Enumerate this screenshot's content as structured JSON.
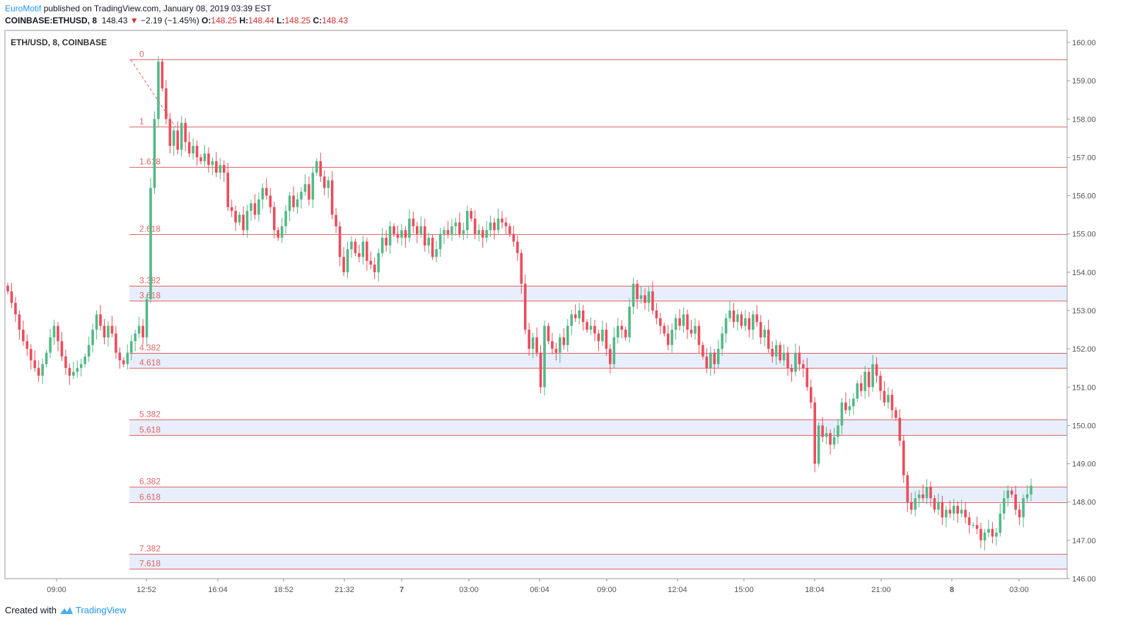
{
  "header": {
    "author": "EuroMotif",
    "published_text": " published on TradingView.com, January 08, 2019 03:39 EST",
    "symbol": "COINBASE:ETHUSD, 8",
    "last": "148.43",
    "change": "−2.19 (−1.45%)",
    "open_label": "O:",
    "open": "148.25",
    "high_label": "H:",
    "high": "148.44",
    "low_label": "L:",
    "low": "148.25",
    "close_label": "C:",
    "close": "148.43"
  },
  "footer": {
    "created_with": "Created with",
    "brand": "TradingView",
    "logo_icon": "tradingview-logo-icon"
  },
  "colors": {
    "up": "#53b987",
    "down": "#eb4d5c",
    "fib_line": "#e06666",
    "fib_band": "#e8eefb",
    "axis_text": "#555555"
  },
  "chart_data": {
    "type": "candlestick",
    "title": "ETH/USD, 8, COINBASE",
    "ylim": [
      146.0,
      160.3
    ],
    "y_ticks": [
      "160.00",
      "159.00",
      "158.00",
      "157.00",
      "156.00",
      "155.00",
      "154.00",
      "153.00",
      "152.00",
      "151.00",
      "150.00",
      "149.00",
      "148.00",
      "147.00",
      "146.00"
    ],
    "x_ticks": [
      "09:00",
      "12:52",
      "16:04",
      "18:52",
      "21:32",
      "7",
      "03:00",
      "06:04",
      "09:00",
      "12:04",
      "15:00",
      "18:04",
      "21:00",
      "8",
      "03:00"
    ],
    "fib_levels": [
      {
        "label": "0",
        "price": 159.55
      },
      {
        "label": "1",
        "price": 157.8
      },
      {
        "label": "1.618",
        "price": 156.75
      },
      {
        "label": "2.618",
        "price": 155.0
      },
      {
        "label": "3.382",
        "price": 153.65
      },
      {
        "label": "3.618",
        "price": 153.25
      },
      {
        "label": "4.382",
        "price": 151.9
      },
      {
        "label": "4.618",
        "price": 151.5
      },
      {
        "label": "5.382",
        "price": 150.15
      },
      {
        "label": "5.618",
        "price": 149.75
      },
      {
        "label": "6.382",
        "price": 148.4
      },
      {
        "label": "6.618",
        "price": 148.0
      },
      {
        "label": "7.382",
        "price": 146.65
      },
      {
        "label": "7.618",
        "price": 146.25
      }
    ],
    "bands": [
      [
        3.382,
        3.618
      ],
      [
        4.382,
        4.618
      ],
      [
        5.382,
        5.618
      ],
      [
        6.382,
        6.618
      ],
      [
        7.382,
        7.618
      ]
    ],
    "trend_line": {
      "from": [
        159.55,
        "12:52"
      ],
      "to": [
        157.8,
        "after 12:52"
      ]
    },
    "closes": [
      153.5,
      153.2,
      152.9,
      152.5,
      152.2,
      152.0,
      151.7,
      151.5,
      151.3,
      151.6,
      151.9,
      152.3,
      152.6,
      152.2,
      151.8,
      151.5,
      151.3,
      151.4,
      151.5,
      151.6,
      151.8,
      152.1,
      152.5,
      152.9,
      152.6,
      152.3,
      152.6,
      152.4,
      151.9,
      151.7,
      151.6,
      151.9,
      152.2,
      152.4,
      152.6,
      152.3,
      153.3,
      156.2,
      158.0,
      159.5,
      158.8,
      158.0,
      157.3,
      157.7,
      157.2,
      157.9,
      157.4,
      157.1,
      157.3,
      157.0,
      156.9,
      157.1,
      156.8,
      156.9,
      156.6,
      156.8,
      156.6,
      155.7,
      155.6,
      155.3,
      155.5,
      155.1,
      155.6,
      155.8,
      155.5,
      155.9,
      156.2,
      156.0,
      155.7,
      155.1,
      154.9,
      155.2,
      155.6,
      156.0,
      155.7,
      155.9,
      156.1,
      156.3,
      155.9,
      156.6,
      156.9,
      156.5,
      156.2,
      156.4,
      155.5,
      155.2,
      154.4,
      154.0,
      154.6,
      154.8,
      154.5,
      154.4,
      154.8,
      154.3,
      154.2,
      154.0,
      154.5,
      154.9,
      154.7,
      155.2,
      155.0,
      154.9,
      155.1,
      154.9,
      155.4,
      155.2,
      155.0,
      155.2,
      154.7,
      154.9,
      154.4,
      154.6,
      155.0,
      155.1,
      155.0,
      155.2,
      155.3,
      155.0,
      155.1,
      155.6,
      155.4,
      155.0,
      155.1,
      154.9,
      155.1,
      155.3,
      155.1,
      155.4,
      155.3,
      155.2,
      155.0,
      154.8,
      154.5,
      153.7,
      152.5,
      152.0,
      152.3,
      151.9,
      151.0,
      152.6,
      152.2,
      152.0,
      151.9,
      152.3,
      152.1,
      152.6,
      152.9,
      152.8,
      153.0,
      152.7,
      152.5,
      152.6,
      152.4,
      152.2,
      152.5,
      152.0,
      151.6,
      152.3,
      152.6,
      152.5,
      152.3,
      153.1,
      153.7,
      153.3,
      153.4,
      153.2,
      153.5,
      153.0,
      152.8,
      152.6,
      152.4,
      152.1,
      152.5,
      152.8,
      152.6,
      152.9,
      152.5,
      152.4,
      152.6,
      152.1,
      151.8,
      151.5,
      151.9,
      151.6,
      152.0,
      152.4,
      152.8,
      153.0,
      152.7,
      152.9,
      152.6,
      152.8,
      152.5,
      152.9,
      152.7,
      152.3,
      152.5,
      152.0,
      151.8,
      152.1,
      151.7,
      151.9,
      151.5,
      151.4,
      151.9,
      151.6,
      151.5,
      151.0,
      150.6,
      149.0,
      150.0,
      149.7,
      149.8,
      149.5,
      149.7,
      150.0,
      150.6,
      150.4,
      150.5,
      150.7,
      151.1,
      150.9,
      151.4,
      151.0,
      151.6,
      151.3,
      150.9,
      150.6,
      150.8,
      150.4,
      150.2,
      149.6,
      148.7,
      148.0,
      147.8,
      148.1,
      148.2,
      148.1,
      148.4,
      148.1,
      147.8,
      148.0,
      147.6,
      147.8,
      147.7,
      147.9,
      147.7,
      147.8,
      147.6,
      147.4,
      147.4,
      147.3,
      147.0,
      147.2,
      147.3,
      147.1,
      147.2,
      147.7,
      148.1,
      148.3,
      148.2,
      147.8,
      147.6,
      148.1,
      148.2,
      148.43
    ]
  }
}
